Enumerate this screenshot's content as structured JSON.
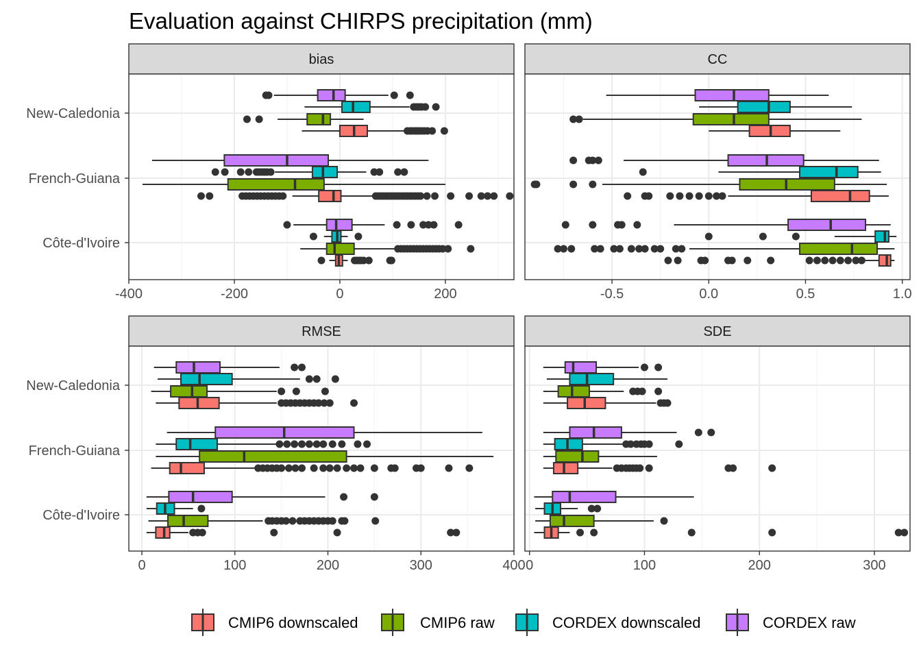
{
  "title": "Evaluation against CHIRPS precipitation (mm)",
  "legend": {
    "position": "bottom",
    "items": [
      {
        "label": "CMIP6 downscaled",
        "color": "#F8766D"
      },
      {
        "label": "CMIP6 raw",
        "color": "#7CAE00"
      },
      {
        "label": "CORDEX downscaled",
        "color": "#00BFC4"
      },
      {
        "label": "CORDEX raw",
        "color": "#C77CFF"
      }
    ]
  },
  "chart_data": {
    "type": "boxplot",
    "orientation": "horizontal",
    "grid": true,
    "facet_scales": "free_x",
    "regions": [
      "New-Caledonia",
      "French-Guiana",
      "Côte-d'Ivoire"
    ],
    "series_order": [
      "CMIP6 downscaled",
      "CMIP6 raw",
      "CORDEX downscaled",
      "CORDEX raw"
    ],
    "panels": [
      {
        "strip": "bias",
        "xlim": [
          -400,
          330
        ],
        "xticks": [
          -400,
          -200,
          0,
          200
        ],
        "xticklabels": [
          "-400",
          "-200",
          "0",
          "200"
        ],
        "boxes": {
          "New-Caledonia": {
            "CORDEX raw": {
              "whisker_low": -125,
              "q1": -42,
              "median": -12,
              "q3": 10,
              "whisker_high": 92,
              "outliers": [
                -140,
                -135,
                103,
                133
              ]
            },
            "CORDEX downscaled": {
              "whisker_low": -67,
              "q1": 4,
              "median": 25,
              "q3": 57,
              "whisker_high": 132,
              "outliers": [
                140,
                145,
                150,
                155,
                162,
                182
              ]
            },
            "CMIP6 raw": {
              "whisker_low": -118,
              "q1": -62,
              "median": -32,
              "q3": -18,
              "whisker_high": 45,
              "outliers": [
                -176,
                -153
              ]
            },
            "CMIP6 downscaled": {
              "whisker_low": -72,
              "q1": 0,
              "median": 27,
              "q3": 52,
              "whisker_high": 122,
              "outliers": [
                128,
                133,
                137,
                142,
                146,
                150,
                155,
                160,
                166,
                175,
                198
              ]
            }
          },
          "French-Guiana": {
            "CORDEX raw": {
              "whisker_low": -356,
              "q1": -219,
              "median": -100,
              "q3": -22,
              "whisker_high": 168,
              "outliers": []
            },
            "CORDEX downscaled": {
              "whisker_low": -123,
              "q1": -52,
              "median": -32,
              "q3": -5,
              "whisker_high": 50,
              "outliers": [
                -236,
                -218,
                -188,
                -173,
                -158,
                -153,
                -148,
                -143,
                -138,
                -131,
                65,
                75,
                110,
                122
              ]
            },
            "CMIP6 raw": {
              "whisker_low": -374,
              "q1": -212,
              "median": -85,
              "q3": -30,
              "whisker_high": 200,
              "outliers": []
            },
            "CMIP6 downscaled": {
              "whisker_low": -90,
              "q1": -40,
              "median": -12,
              "q3": 2,
              "whisker_high": 62,
              "outliers": [
                -263,
                -247,
                -185,
                -178,
                -171,
                -164,
                -157,
                -150,
                -143,
                -136,
                -129,
                -122,
                -115,
                -108,
                68,
                73,
                78,
                83,
                88,
                93,
                98,
                103,
                108,
                113,
                118,
                123,
                128,
                133,
                138,
                143,
                148,
                153,
                165,
                180,
                210,
                245,
                268,
                280,
                292,
                322
              ]
            }
          },
          "Côte-d'Ivoire": {
            "CORDEX raw": {
              "whisker_low": -88,
              "q1": -25,
              "median": -7,
              "q3": 23,
              "whisker_high": 85,
              "outliers": [
                -100,
                108,
                135,
                158,
                168,
                178,
                225
              ]
            },
            "CORDEX downscaled": {
              "whisker_low": -30,
              "q1": -15,
              "median": -5,
              "q3": 2,
              "whisker_high": 15,
              "outliers": [
                -50,
                35
              ]
            },
            "CMIP6 raw": {
              "whisker_low": -75,
              "q1": -25,
              "median": -10,
              "q3": 27,
              "whisker_high": 105,
              "outliers": [
                110,
                116,
                122,
                128,
                134,
                140,
                146,
                152,
                158,
                164,
                170,
                176,
                182,
                188,
                195,
                205,
                248
              ]
            },
            "CMIP6 downscaled": {
              "whisker_low": -20,
              "q1": -8,
              "median": -2,
              "q3": 5,
              "whisker_high": 15,
              "outliers": [
                -35,
                28,
                32,
                36,
                40,
                45,
                55,
                95,
                98
              ]
            }
          }
        }
      },
      {
        "strip": "CC",
        "xlim": [
          -0.95,
          1.04
        ],
        "xticks": [
          -0.5,
          0.0,
          0.5,
          1.0
        ],
        "xticklabels": [
          "-0.5",
          "0.0",
          "0.5",
          "1.0"
        ],
        "boxes": {
          "New-Caledonia": {
            "CORDEX raw": {
              "whisker_low": -0.53,
              "q1": -0.07,
              "median": 0.13,
              "q3": 0.31,
              "whisker_high": 0.62,
              "outliers": []
            },
            "CORDEX downscaled": {
              "whisker_low": -0.05,
              "q1": 0.15,
              "median": 0.31,
              "q3": 0.42,
              "whisker_high": 0.74,
              "outliers": []
            },
            "CMIP6 raw": {
              "whisker_low": -0.65,
              "q1": -0.08,
              "median": 0.13,
              "q3": 0.31,
              "whisker_high": 0.79,
              "outliers": [
                -0.7,
                -0.67
              ]
            },
            "CMIP6 downscaled": {
              "whisker_low": 0.0,
              "q1": 0.21,
              "median": 0.32,
              "q3": 0.42,
              "whisker_high": 0.68,
              "outliers": []
            }
          },
          "French-Guiana": {
            "CORDEX raw": {
              "whisker_low": -0.44,
              "q1": 0.1,
              "median": 0.3,
              "q3": 0.49,
              "whisker_high": 0.88,
              "outliers": [
                -0.7,
                -0.62,
                -0.6,
                -0.57
              ]
            },
            "CORDEX downscaled": {
              "whisker_low": 0.05,
              "q1": 0.47,
              "median": 0.66,
              "q3": 0.77,
              "whisker_high": 0.89,
              "outliers": [
                -0.34
              ]
            },
            "CMIP6 raw": {
              "whisker_low": -0.55,
              "q1": 0.16,
              "median": 0.4,
              "q3": 0.65,
              "whisker_high": 0.92,
              "outliers": [
                -0.9,
                -0.89,
                -0.7,
                -0.6
              ]
            },
            "CMIP6 downscaled": {
              "whisker_low": 0.1,
              "q1": 0.53,
              "median": 0.73,
              "q3": 0.83,
              "whisker_high": 0.93,
              "outliers": [
                -0.42,
                -0.33,
                -0.31,
                -0.2,
                -0.15,
                -0.1,
                -0.05,
                0.0,
                0.04,
                0.07
              ]
            }
          },
          "Côte-d'Ivoire": {
            "CORDEX raw": {
              "whisker_low": -0.18,
              "q1": 0.41,
              "median": 0.63,
              "q3": 0.81,
              "whisker_high": 0.94,
              "outliers": [
                -0.74,
                -0.6,
                -0.47,
                -0.45,
                -0.37
              ]
            },
            "CORDEX downscaled": {
              "whisker_low": 0.65,
              "q1": 0.86,
              "median": 0.91,
              "q3": 0.93,
              "whisker_high": 0.97,
              "outliers": [
                0.0,
                0.28,
                0.45
              ]
            },
            "CMIP6 raw": {
              "whisker_low": -0.1,
              "q1": 0.47,
              "median": 0.74,
              "q3": 0.87,
              "whisker_high": 0.96,
              "outliers": [
                -0.78,
                -0.75,
                -0.71,
                -0.59,
                -0.56,
                -0.49,
                -0.46,
                -0.4,
                -0.36,
                -0.33,
                -0.28,
                -0.25,
                -0.17,
                -0.14
              ]
            },
            "CMIP6 downscaled": {
              "whisker_low": 0.8,
              "q1": 0.88,
              "median": 0.92,
              "q3": 0.94,
              "whisker_high": 0.96,
              "outliers": [
                -0.21,
                -0.16,
                -0.04,
                -0.02,
                0.1,
                0.12,
                0.2,
                0.32,
                0.52,
                0.56,
                0.6,
                0.64,
                0.68,
                0.72,
                0.76,
                0.79
              ]
            }
          }
        }
      },
      {
        "strip": "RMSE",
        "xlim": [
          -14,
          400
        ],
        "xticks": [
          0,
          100,
          200,
          300,
          400
        ],
        "xticklabels": [
          "0",
          "100",
          "200",
          "300",
          "400"
        ],
        "boxes": {
          "New-Caledonia": {
            "CORDEX raw": {
              "whisker_low": 13,
              "q1": 37,
              "median": 56,
              "q3": 84,
              "whisker_high": 148,
              "outliers": [
                164,
                172
              ]
            },
            "CORDEX downscaled": {
              "whisker_low": 17,
              "q1": 42,
              "median": 62,
              "q3": 97,
              "whisker_high": 170,
              "outliers": [
                180,
                188,
                208
              ]
            },
            "CMIP6 raw": {
              "whisker_low": 10,
              "q1": 31,
              "median": 54,
              "q3": 70,
              "whisker_high": 145,
              "outliers": [
                150,
                166,
                197
              ]
            },
            "CMIP6 downscaled": {
              "whisker_low": 15,
              "q1": 40,
              "median": 60,
              "q3": 83,
              "whisker_high": 145,
              "outliers": [
                150,
                155,
                160,
                165,
                170,
                175,
                180,
                185,
                190,
                196,
                202,
                228
              ]
            }
          },
          "French-Guiana": {
            "CORDEX raw": {
              "whisker_low": 27,
              "q1": 79,
              "median": 153,
              "q3": 228,
              "whisker_high": 366,
              "outliers": []
            },
            "CORDEX downscaled": {
              "whisker_low": 15,
              "q1": 37,
              "median": 52,
              "q3": 81,
              "whisker_high": 145,
              "outliers": [
                148,
                156,
                164,
                172,
                180,
                188,
                195,
                205,
                215,
                232,
                242
              ]
            },
            "CMIP6 raw": {
              "whisker_low": 15,
              "q1": 62,
              "median": 110,
              "q3": 220,
              "whisker_high": 378,
              "outliers": []
            },
            "CMIP6 downscaled": {
              "whisker_low": 10,
              "q1": 30,
              "median": 42,
              "q3": 67,
              "whisker_high": 122,
              "outliers": [
                125,
                130,
                135,
                140,
                145,
                150,
                158,
                165,
                172,
                185,
                195,
                202,
                210,
                220,
                228,
                235,
                250,
                268,
                272,
                295,
                300,
                330,
                352
              ]
            }
          },
          "Côte-d'Ivoire": {
            "CORDEX raw": {
              "whisker_low": 5,
              "q1": 29,
              "median": 55,
              "q3": 97,
              "whisker_high": 197,
              "outliers": [
                217,
                250
              ]
            },
            "CORDEX downscaled": {
              "whisker_low": 5,
              "q1": 16,
              "median": 25,
              "q3": 35,
              "whisker_high": 55,
              "outliers": [
                64
              ]
            },
            "CMIP6 raw": {
              "whisker_low": 7,
              "q1": 28,
              "median": 45,
              "q3": 71,
              "whisker_high": 130,
              "outliers": [
                136,
                140,
                145,
                150,
                155,
                162,
                170,
                175,
                180,
                185,
                190,
                195,
                200,
                205,
                215,
                218,
                251
              ]
            },
            "CMIP6 downscaled": {
              "whisker_low": 5,
              "q1": 15,
              "median": 24,
              "q3": 30,
              "whisker_high": 50,
              "outliers": [
                55,
                60,
                65,
                142,
                210,
                332,
                338
              ]
            }
          }
        }
      },
      {
        "strip": "SDE",
        "xlim": [
          -4,
          331
        ],
        "xticks": [
          0,
          100,
          200,
          300
        ],
        "xticklabels": [
          "0",
          "100",
          "200",
          "300"
        ],
        "boxes": {
          "New-Caledonia": {
            "CORDEX raw": {
              "whisker_low": 12,
              "q1": 31,
              "median": 38,
              "q3": 58,
              "whisker_high": 95,
              "outliers": [
                100,
                112
              ]
            },
            "CORDEX downscaled": {
              "whisker_low": 15,
              "q1": 35,
              "median": 50,
              "q3": 73,
              "whisker_high": 120,
              "outliers": []
            },
            "CMIP6 raw": {
              "whisker_low": 12,
              "q1": 25,
              "median": 37,
              "q3": 52,
              "whisker_high": 82,
              "outliers": [
                90,
                94,
                98,
                112
              ]
            },
            "CMIP6 downscaled": {
              "whisker_low": 12,
              "q1": 33,
              "median": 48,
              "q3": 66,
              "whisker_high": 110,
              "outliers": [
                114,
                117,
                120
              ]
            }
          },
          "French-Guiana": {
            "CORDEX raw": {
              "whisker_low": 12,
              "q1": 35,
              "median": 56,
              "q3": 80,
              "whisker_high": 128,
              "outliers": [
                147,
                158
              ]
            },
            "CORDEX downscaled": {
              "whisker_low": 12,
              "q1": 22,
              "median": 33,
              "q3": 46,
              "whisker_high": 82,
              "outliers": [
                84,
                88,
                93,
                97,
                100,
                104,
                130
              ]
            },
            "CMIP6 raw": {
              "whisker_low": 12,
              "q1": 23,
              "median": 46,
              "q3": 60,
              "whisker_high": 111,
              "outliers": []
            },
            "CMIP6 downscaled": {
              "whisker_low": 12,
              "q1": 21,
              "median": 30,
              "q3": 42,
              "whisker_high": 72,
              "outliers": [
                76,
                80,
                84,
                87,
                90,
                93,
                96,
                104,
                173,
                177,
                211
              ]
            }
          },
          "Côte-d'Ivoire": {
            "CORDEX raw": {
              "whisker_low": 4,
              "q1": 20,
              "median": 35,
              "q3": 75,
              "whisker_high": 143,
              "outliers": []
            },
            "CORDEX downscaled": {
              "whisker_low": 5,
              "q1": 13,
              "median": 20,
              "q3": 27,
              "whisker_high": 42,
              "outliers": [
                54,
                59
              ]
            },
            "CMIP6 raw": {
              "whisker_low": 5,
              "q1": 18,
              "median": 30,
              "q3": 56,
              "whisker_high": 108,
              "outliers": [
                117
              ]
            },
            "CMIP6 downscaled": {
              "whisker_low": 4,
              "q1": 13,
              "median": 19,
              "q3": 25,
              "whisker_high": 35,
              "outliers": [
                44,
                56,
                141,
                211,
                321,
                326
              ]
            }
          }
        }
      }
    ]
  }
}
